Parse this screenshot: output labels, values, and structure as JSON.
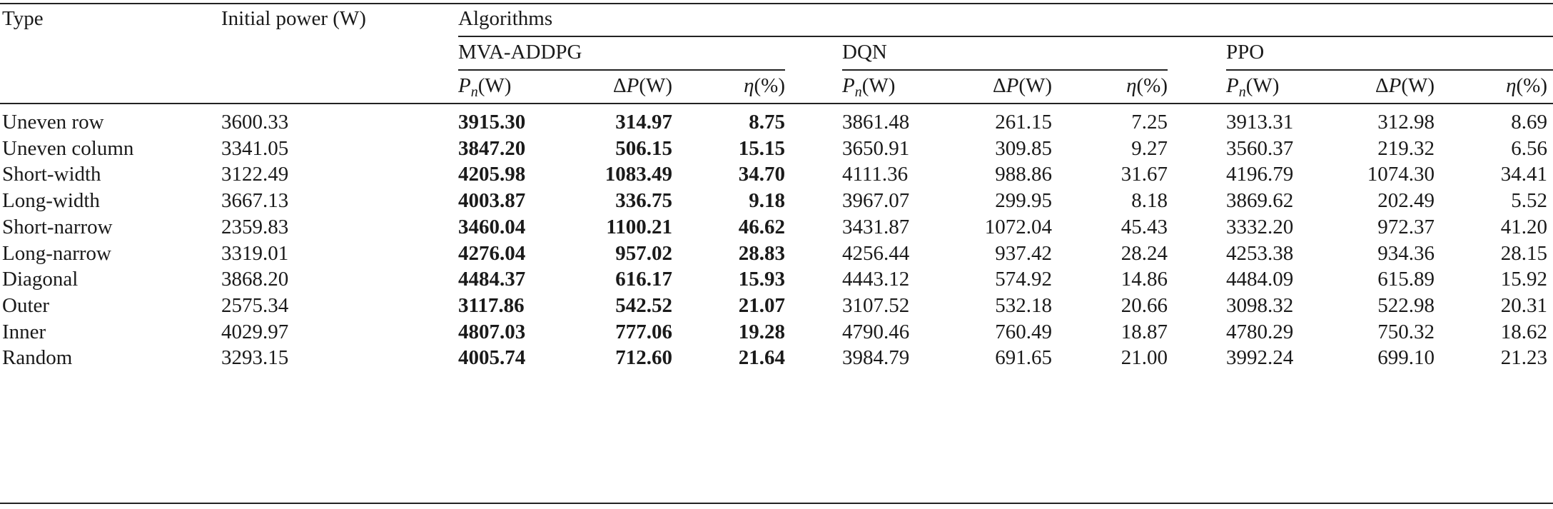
{
  "table": {
    "header": {
      "type": "Type",
      "initial_power": "Initial power (W)",
      "algorithms": "Algorithms",
      "groups": [
        "MVA-ADDPG",
        "DQN",
        "PPO"
      ],
      "sub": {
        "pn_sym": "P",
        "pn_sub": "n",
        "pn_unit": "(W)",
        "dp_delta": "Δ",
        "dp_sym": "P",
        "dp_unit": "(W)",
        "eta_sym": "η",
        "eta_unit": "(%)"
      }
    },
    "rows": [
      {
        "type": "Uneven row",
        "init": "3600.33",
        "mva": [
          "3915.30",
          "314.97",
          "8.75"
        ],
        "dqn": [
          "3861.48",
          "261.15",
          "7.25"
        ],
        "ppo": [
          "3913.31",
          "312.98",
          "8.69"
        ]
      },
      {
        "type": "Uneven column",
        "init": "3341.05",
        "mva": [
          "3847.20",
          "506.15",
          "15.15"
        ],
        "dqn": [
          "3650.91",
          "309.85",
          "9.27"
        ],
        "ppo": [
          "3560.37",
          "219.32",
          "6.56"
        ]
      },
      {
        "type": "Short-width",
        "init": "3122.49",
        "mva": [
          "4205.98",
          "1083.49",
          "34.70"
        ],
        "dqn": [
          "4111.36",
          "988.86",
          "31.67"
        ],
        "ppo": [
          "4196.79",
          "1074.30",
          "34.41"
        ]
      },
      {
        "type": "Long-width",
        "init": "3667.13",
        "mva": [
          "4003.87",
          "336.75",
          "9.18"
        ],
        "dqn": [
          "3967.07",
          "299.95",
          "8.18"
        ],
        "ppo": [
          "3869.62",
          "202.49",
          "5.52"
        ]
      },
      {
        "type": "Short-narrow",
        "init": "2359.83",
        "mva": [
          "3460.04",
          "1100.21",
          "46.62"
        ],
        "dqn": [
          "3431.87",
          "1072.04",
          "45.43"
        ],
        "ppo": [
          "3332.20",
          "972.37",
          "41.20"
        ]
      },
      {
        "type": "Long-narrow",
        "init": "3319.01",
        "mva": [
          "4276.04",
          "957.02",
          "28.83"
        ],
        "dqn": [
          "4256.44",
          "937.42",
          "28.24"
        ],
        "ppo": [
          "4253.38",
          "934.36",
          "28.15"
        ]
      },
      {
        "type": "Diagonal",
        "init": "3868.20",
        "mva": [
          "4484.37",
          "616.17",
          "15.93"
        ],
        "dqn": [
          "4443.12",
          "574.92",
          "14.86"
        ],
        "ppo": [
          "4484.09",
          "615.89",
          "15.92"
        ]
      },
      {
        "type": "Outer",
        "init": "2575.34",
        "mva": [
          "3117.86",
          "542.52",
          "21.07"
        ],
        "dqn": [
          "3107.52",
          "532.18",
          "20.66"
        ],
        "ppo": [
          "3098.32",
          "522.98",
          "20.31"
        ]
      },
      {
        "type": "Inner",
        "init": "4029.97",
        "mva": [
          "4807.03",
          "777.06",
          "19.28"
        ],
        "dqn": [
          "4790.46",
          "760.49",
          "18.87"
        ],
        "ppo": [
          "4780.29",
          "750.32",
          "18.62"
        ]
      },
      {
        "type": "Random",
        "init": "3293.15",
        "mva": [
          "4005.74",
          "712.60",
          "21.64"
        ],
        "dqn": [
          "3984.79",
          "691.65",
          "21.00"
        ],
        "ppo": [
          "3992.24",
          "699.10",
          "21.23"
        ]
      }
    ]
  }
}
